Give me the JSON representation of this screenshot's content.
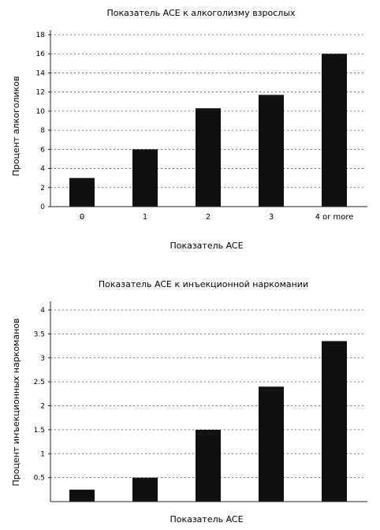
{
  "chart_data": [
    {
      "type": "bar",
      "title": "Показатель ACE к алкоголизму взрослых",
      "xlabel": "Показатель ACE",
      "ylabel": "Процент алкоголиков",
      "categories": [
        "0",
        "1",
        "2",
        "3",
        "4 or more"
      ],
      "values": [
        3,
        6,
        10.3,
        11.7,
        16
      ],
      "yticks": [
        "0",
        "2",
        "4",
        "6",
        "8",
        "10",
        "12",
        "14",
        "16",
        "18"
      ],
      "ylim": [
        0,
        18
      ],
      "grid": true,
      "bar_color": "#111111"
    },
    {
      "type": "bar",
      "title": "Показатель ACE к инъекционной наркомании",
      "xlabel": "Показатель ACE",
      "ylabel": "Процент инъекционных наркоманов",
      "categories": [
        "",
        "",
        "",
        "",
        ""
      ],
      "values": [
        0.25,
        0.5,
        1.5,
        2.4,
        3.35
      ],
      "yticks": [
        "0.5",
        "1",
        "1.5",
        "2",
        "2.5",
        "3",
        "3.5",
        "4"
      ],
      "ylim": [
        0,
        4
      ],
      "grid": true,
      "bar_color": "#111111"
    }
  ]
}
